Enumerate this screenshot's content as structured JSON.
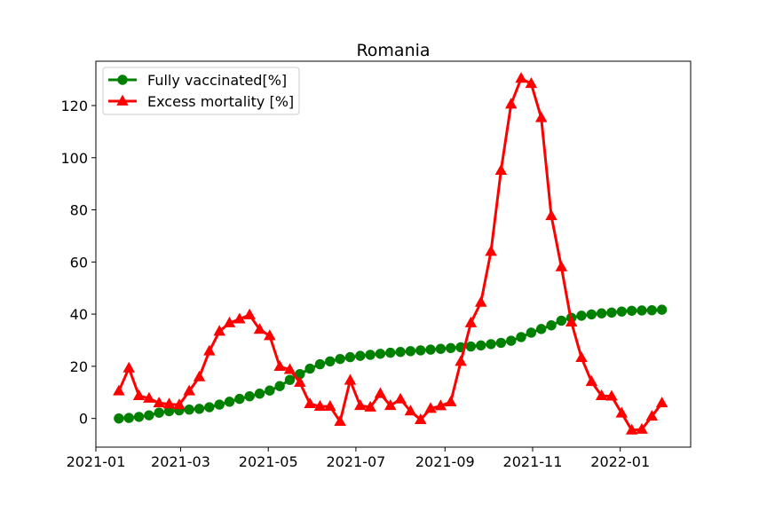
{
  "chart_data": {
    "type": "line",
    "title": "Romania",
    "xlabel": "",
    "ylabel": "",
    "xlim": [
      "2021-01-01",
      "2022-02-19"
    ],
    "ylim": [
      -11,
      137
    ],
    "grid": false,
    "legend_position": "top-left",
    "x_ticks": [
      "2021-01",
      "2021-03",
      "2021-05",
      "2021-07",
      "2021-09",
      "2021-11",
      "2022-01"
    ],
    "y_ticks": [
      0,
      20,
      40,
      60,
      80,
      100,
      120
    ],
    "x": [
      "2021-01-17",
      "2021-01-24",
      "2021-01-31",
      "2021-02-07",
      "2021-02-14",
      "2021-02-21",
      "2021-02-28",
      "2021-03-07",
      "2021-03-14",
      "2021-03-21",
      "2021-03-28",
      "2021-04-04",
      "2021-04-11",
      "2021-04-18",
      "2021-04-25",
      "2021-05-02",
      "2021-05-09",
      "2021-05-16",
      "2021-05-23",
      "2021-05-30",
      "2021-06-06",
      "2021-06-13",
      "2021-06-20",
      "2021-06-27",
      "2021-07-04",
      "2021-07-11",
      "2021-07-18",
      "2021-07-25",
      "2021-08-01",
      "2021-08-08",
      "2021-08-15",
      "2021-08-22",
      "2021-08-29",
      "2021-09-05",
      "2021-09-12",
      "2021-09-19",
      "2021-09-26",
      "2021-10-03",
      "2021-10-10",
      "2021-10-17",
      "2021-10-24",
      "2021-10-31",
      "2021-11-07",
      "2021-11-14",
      "2021-11-21",
      "2021-11-28",
      "2021-12-05",
      "2021-12-12",
      "2021-12-19",
      "2021-12-26",
      "2022-01-02",
      "2022-01-09",
      "2022-01-16",
      "2022-01-23",
      "2022-01-30"
    ],
    "series": [
      {
        "name": "Fully vaccinated[%]",
        "color": "#008000",
        "marker": "circle",
        "values": [
          0.0,
          0.2,
          0.6,
          1.2,
          2.2,
          2.8,
          3.1,
          3.4,
          3.7,
          4.3,
          5.3,
          6.4,
          7.5,
          8.5,
          9.5,
          10.7,
          12.4,
          14.8,
          17.0,
          19.1,
          20.8,
          21.9,
          22.8,
          23.5,
          24.0,
          24.4,
          24.8,
          25.2,
          25.5,
          25.8,
          26.1,
          26.4,
          26.7,
          27.0,
          27.3,
          27.6,
          28.0,
          28.5,
          29.0,
          29.8,
          31.2,
          32.9,
          34.3,
          35.7,
          37.5,
          38.6,
          39.4,
          39.9,
          40.3,
          40.6,
          41.0,
          41.3,
          41.4,
          41.5,
          41.7
        ]
      },
      {
        "name": "Excess mortality [%]",
        "color": "#ff0000",
        "marker": "triangle",
        "values": [
          10.5,
          19.3,
          8.7,
          7.7,
          5.9,
          5.5,
          5.2,
          10.5,
          15.9,
          25.8,
          33.4,
          36.6,
          38.1,
          39.7,
          34.1,
          31.7,
          19.9,
          18.7,
          13.8,
          5.6,
          4.6,
          4.6,
          -1.2,
          14.6,
          4.9,
          4.3,
          9.5,
          4.9,
          7.4,
          2.8,
          -0.5,
          3.8,
          4.8,
          6.3,
          21.8,
          36.6,
          44.5,
          64.0,
          95.1,
          120.5,
          130.4,
          128.4,
          115.3,
          77.7,
          58.1,
          36.9,
          23.3,
          14.1,
          8.7,
          8.5,
          2.0,
          -4.5,
          -4.2,
          0.8,
          5.9
        ]
      }
    ]
  }
}
